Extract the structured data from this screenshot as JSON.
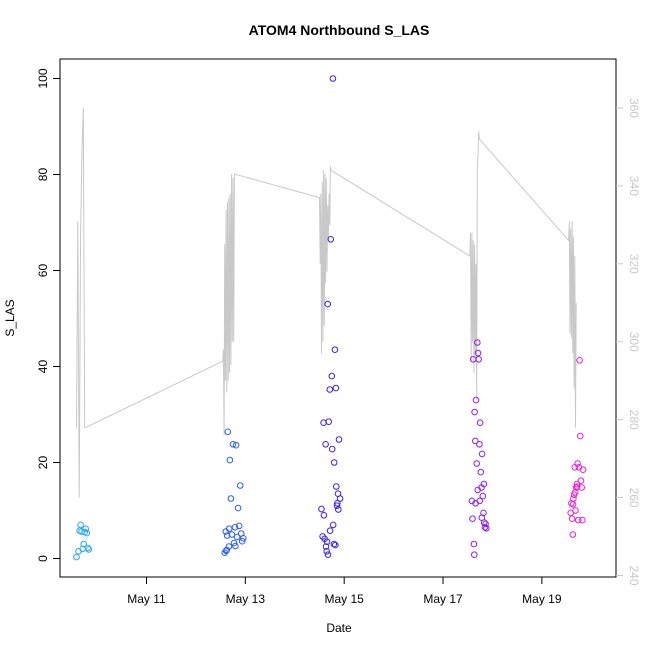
{
  "chart_data": {
    "type": "scatter",
    "title": "ATOM4 Northbound S_LAS",
    "xlabel": "Date",
    "ylabel": "S_LAS",
    "x_ticks": [
      "May 11",
      "May 13",
      "May 15",
      "May 17",
      "May 19"
    ],
    "xlim": [
      "2011-05-09 06:00",
      "2011-05-20 12:00"
    ],
    "ylim": [
      0,
      100
    ],
    "y_ticks": [
      0,
      20,
      40,
      60,
      80,
      100
    ],
    "y2_ticks": [
      240,
      260,
      280,
      300,
      320,
      340,
      360
    ],
    "y2lim": [
      240,
      365
    ],
    "grid": false,
    "colors": {
      "line": "#c8c8c8",
      "right_axis": "#c8c8c8",
      "points_day1": "#2aa6f0",
      "points_day2": "#2a5ef0",
      "points_day3": "#3c1ff0",
      "points_day4": "#8a1ff0",
      "points_day5": "#e81fd8"
    },
    "series": [
      {
        "type": "scatter",
        "marker": "open-circle",
        "points": [
          [
            "2011-05-09 14:00",
            0.3
          ],
          [
            "2011-05-09 15:00",
            1.5
          ],
          [
            "2011-05-09 15:30",
            5.8
          ],
          [
            "2011-05-09 16:00",
            7.0
          ],
          [
            "2011-05-09 16:30",
            5.6
          ],
          [
            "2011-05-09 17:00",
            2.0
          ],
          [
            "2011-05-09 17:30",
            3.0
          ],
          [
            "2011-05-09 18:00",
            5.5
          ],
          [
            "2011-05-09 18:30",
            6.2
          ],
          [
            "2011-05-09 19:00",
            5.3
          ],
          [
            "2011-05-09 19:30",
            2.2
          ],
          [
            "2011-05-09 20:00",
            1.9
          ],
          [
            "2011-05-12 14:00",
            1.2
          ],
          [
            "2011-05-12 14:30",
            5.6
          ],
          [
            "2011-05-12 15:00",
            1.8
          ],
          [
            "2011-05-12 15:30",
            26.4
          ],
          [
            "2011-05-12 16:00",
            2.5
          ],
          [
            "2011-05-12 16:30",
            20.5
          ],
          [
            "2011-05-12 17:00",
            12.5
          ],
          [
            "2011-05-12 17:30",
            5.0
          ],
          [
            "2011-05-12 18:00",
            23.8
          ],
          [
            "2011-05-12 18:30",
            3.2
          ],
          [
            "2011-05-12 19:00",
            6.5
          ],
          [
            "2011-05-12 19:30",
            23.6
          ],
          [
            "2011-05-12 20:00",
            4.5
          ],
          [
            "2011-05-12 20:30",
            10.5
          ],
          [
            "2011-05-12 21:00",
            6.8
          ],
          [
            "2011-05-12 21:30",
            15.2
          ],
          [
            "2011-05-12 22:00",
            5.2
          ],
          [
            "2011-05-12 22:30",
            3.6
          ],
          [
            "2011-05-12 23:00",
            4.2
          ],
          [
            "2011-05-12 14:40",
            1.6
          ],
          [
            "2011-05-12 15:10",
            4.8
          ],
          [
            "2011-05-12 16:10",
            6.2
          ],
          [
            "2011-05-12 19:10",
            2.6
          ],
          [
            "2011-05-14 13:00",
            10.3
          ],
          [
            "2011-05-14 13:30",
            4.6
          ],
          [
            "2011-05-14 14:00",
            28.3
          ],
          [
            "2011-05-14 14:30",
            4.1
          ],
          [
            "2011-05-14 15:00",
            23.8
          ],
          [
            "2011-05-14 15:30",
            1.5
          ],
          [
            "2011-05-14 16:00",
            53.0
          ],
          [
            "2011-05-14 16:30",
            28.5
          ],
          [
            "2011-05-14 17:00",
            35.2
          ],
          [
            "2011-05-14 17:30",
            66.5
          ],
          [
            "2011-05-14 18:00",
            38.0
          ],
          [
            "2011-05-14 18:30",
            100.0
          ],
          [
            "2011-05-14 19:00",
            3.0
          ],
          [
            "2011-05-14 19:30",
            43.5
          ],
          [
            "2011-05-14 20:00",
            35.5
          ],
          [
            "2011-05-14 20:30",
            11.0
          ],
          [
            "2011-05-14 21:00",
            13.5
          ],
          [
            "2011-05-14 21:30",
            24.8
          ],
          [
            "2011-05-14 22:00",
            12.5
          ],
          [
            "2011-05-14 16:10",
            0.8
          ],
          [
            "2011-05-14 17:10",
            5.8
          ],
          [
            "2011-05-14 18:10",
            22.8
          ],
          [
            "2011-05-14 19:10",
            20.0
          ],
          [
            "2011-05-14 20:10",
            15.0
          ],
          [
            "2011-05-14 21:10",
            10.2
          ],
          [
            "2011-05-14 14:10",
            9.0
          ],
          [
            "2011-05-14 18:40",
            7.0
          ],
          [
            "2011-05-14 19:40",
            2.8
          ],
          [
            "2011-05-14 20:40",
            11.5
          ],
          [
            "2011-05-14 15:10",
            2.5
          ],
          [
            "2011-05-14 15:40",
            3.5
          ],
          [
            "2011-05-17 14:00",
            12.0
          ],
          [
            "2011-05-17 14:20",
            8.3
          ],
          [
            "2011-05-17 14:40",
            41.5
          ],
          [
            "2011-05-17 15:00",
            3.0
          ],
          [
            "2011-05-17 15:20",
            30.5
          ],
          [
            "2011-05-17 15:40",
            24.5
          ],
          [
            "2011-05-17 16:00",
            33.0
          ],
          [
            "2011-05-17 16:20",
            19.8
          ],
          [
            "2011-05-17 16:40",
            45.0
          ],
          [
            "2011-05-17 17:00",
            42.8
          ],
          [
            "2011-05-17 17:20",
            41.5
          ],
          [
            "2011-05-17 17:40",
            23.8
          ],
          [
            "2011-05-17 18:00",
            28.3
          ],
          [
            "2011-05-17 18:20",
            18.0
          ],
          [
            "2011-05-17 18:40",
            14.8
          ],
          [
            "2011-05-17 19:00",
            21.8
          ],
          [
            "2011-05-17 19:20",
            13.0
          ],
          [
            "2011-05-17 19:40",
            9.5
          ],
          [
            "2011-05-17 20:00",
            7.5
          ],
          [
            "2011-05-17 20:20",
            6.5
          ],
          [
            "2011-05-17 20:40",
            7.2
          ],
          [
            "2011-05-17 21:00",
            6.3
          ],
          [
            "2011-05-17 15:10",
            0.8
          ],
          [
            "2011-05-17 15:50",
            11.5
          ],
          [
            "2011-05-17 16:50",
            14.3
          ],
          [
            "2011-05-17 17:50",
            12.0
          ],
          [
            "2011-05-17 18:50",
            8.5
          ],
          [
            "2011-05-17 19:50",
            15.5
          ],
          [
            "2011-05-19 14:00",
            9.5
          ],
          [
            "2011-05-19 14:20",
            11.5
          ],
          [
            "2011-05-19 14:40",
            8.3
          ],
          [
            "2011-05-19 15:00",
            5.0
          ],
          [
            "2011-05-19 15:20",
            12.5
          ],
          [
            "2011-05-19 15:40",
            13.3
          ],
          [
            "2011-05-19 16:00",
            19.0
          ],
          [
            "2011-05-19 16:20",
            10.0
          ],
          [
            "2011-05-19 16:40",
            14.8
          ],
          [
            "2011-05-19 17:00",
            15.5
          ],
          [
            "2011-05-19 17:20",
            19.8
          ],
          [
            "2011-05-19 17:40",
            8.0
          ],
          [
            "2011-05-19 18:00",
            19.0
          ],
          [
            "2011-05-19 18:20",
            41.3
          ],
          [
            "2011-05-19 18:40",
            25.5
          ],
          [
            "2011-05-19 19:00",
            16.2
          ],
          [
            "2011-05-19 19:20",
            14.8
          ],
          [
            "2011-05-19 19:40",
            8.0
          ],
          [
            "2011-05-19 20:00",
            18.5
          ],
          [
            "2011-05-19 15:10",
            11.3
          ],
          [
            "2011-05-19 16:10",
            13.8
          ],
          [
            "2011-05-19 17:10",
            15.0
          ]
        ]
      },
      {
        "type": "line",
        "axis": "right",
        "points": [
          [
            "2011-05-09 14:00",
            278
          ],
          [
            "2011-05-09 14:40",
            331
          ],
          [
            "2011-05-09 15:20",
            260
          ],
          [
            "2011-05-09 16:00",
            328
          ],
          [
            "2011-05-09 16:40",
            349
          ],
          [
            "2011-05-09 17:20",
            360
          ],
          [
            "2011-05-09 18:00",
            278
          ],
          [
            "2011-05-09 18:30",
            278
          ],
          [
            "2011-05-12 13:00",
            295
          ],
          [
            "2011-05-12 13:20",
            298
          ],
          [
            "2011-05-12 13:40",
            276
          ],
          [
            "2011-05-12 14:00",
            325
          ],
          [
            "2011-05-12 14:20",
            290
          ],
          [
            "2011-05-12 14:40",
            334
          ],
          [
            "2011-05-12 15:00",
            287
          ],
          [
            "2011-05-12 15:20",
            336
          ],
          [
            "2011-05-12 15:40",
            290
          ],
          [
            "2011-05-12 16:00",
            337
          ],
          [
            "2011-05-12 16:20",
            292
          ],
          [
            "2011-05-12 16:40",
            338
          ],
          [
            "2011-05-12 17:00",
            294
          ],
          [
            "2011-05-12 17:20",
            343
          ],
          [
            "2011-05-12 17:40",
            300
          ],
          [
            "2011-05-12 18:00",
            342
          ],
          [
            "2011-05-12 18:20",
            300
          ],
          [
            "2011-05-12 18:40",
            343
          ],
          [
            "2011-05-12 19:00",
            343
          ],
          [
            "2011-05-14 12:00",
            337
          ],
          [
            "2011-05-14 12:20",
            320
          ],
          [
            "2011-05-14 12:40",
            338
          ],
          [
            "2011-05-14 13:00",
            297
          ],
          [
            "2011-05-14 13:20",
            341
          ],
          [
            "2011-05-14 13:40",
            300
          ],
          [
            "2011-05-14 14:00",
            344
          ],
          [
            "2011-05-14 14:20",
            304
          ],
          [
            "2011-05-14 14:40",
            343
          ],
          [
            "2011-05-14 15:00",
            315
          ],
          [
            "2011-05-14 15:20",
            342
          ],
          [
            "2011-05-14 15:40",
            318
          ],
          [
            "2011-05-14 16:00",
            335
          ],
          [
            "2011-05-14 16:20",
            326
          ],
          [
            "2011-05-14 16:40",
            338
          ],
          [
            "2011-05-14 17:00",
            330
          ],
          [
            "2011-05-14 17:20",
            345
          ],
          [
            "2011-05-14 17:40",
            344
          ],
          [
            "2011-05-17 13:00",
            322
          ],
          [
            "2011-05-17 13:20",
            328
          ],
          [
            "2011-05-17 13:40",
            295
          ],
          [
            "2011-05-17 14:00",
            328
          ],
          [
            "2011-05-17 14:20",
            300
          ],
          [
            "2011-05-17 14:40",
            326
          ],
          [
            "2011-05-17 15:00",
            292
          ],
          [
            "2011-05-17 15:20",
            325
          ],
          [
            "2011-05-17 15:40",
            297
          ],
          [
            "2011-05-17 16:00",
            320
          ],
          [
            "2011-05-17 16:20",
            285
          ],
          [
            "2011-05-17 16:40",
            345
          ],
          [
            "2011-05-17 17:00",
            348
          ],
          [
            "2011-05-17 17:20",
            354
          ],
          [
            "2011-05-17 17:40",
            352
          ],
          [
            "2011-05-19 13:00",
            326
          ],
          [
            "2011-05-19 13:20",
            331
          ],
          [
            "2011-05-19 13:40",
            302
          ],
          [
            "2011-05-19 14:00",
            329
          ],
          [
            "2011-05-19 14:20",
            301
          ],
          [
            "2011-05-19 14:40",
            331
          ],
          [
            "2011-05-19 15:00",
            297
          ],
          [
            "2011-05-19 15:20",
            327
          ],
          [
            "2011-05-19 15:40",
            288
          ],
          [
            "2011-05-19 16:00",
            322
          ],
          [
            "2011-05-19 16:20",
            278
          ],
          [
            "2011-05-19 16:40",
            310
          ]
        ]
      }
    ]
  }
}
